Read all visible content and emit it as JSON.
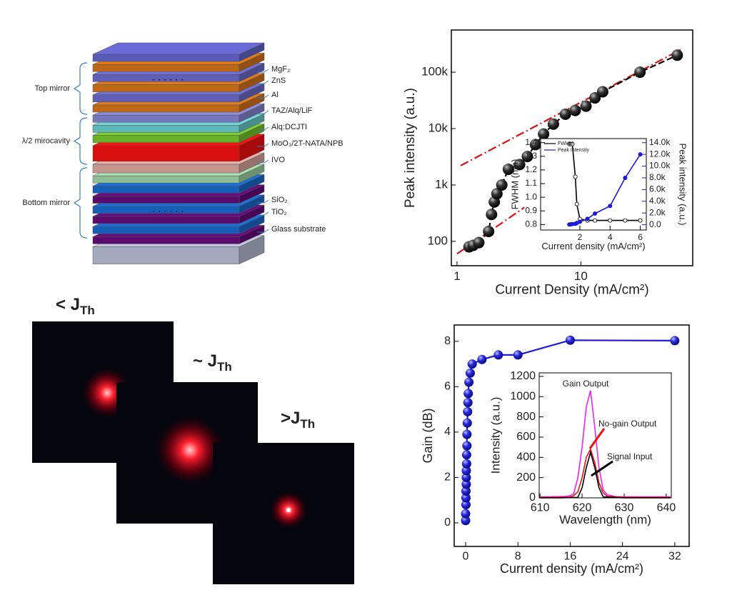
{
  "diagram": {
    "layers": [
      "MgF₂",
      "ZnS",
      "Al",
      "TAZ/Alq/LiF",
      "Alq:DCJTI",
      "MoO₃/2T-NATA/NPB",
      "IVO",
      "SiO₂",
      "TiO₂",
      "Glass substrate"
    ],
    "groups": [
      "Top mirror",
      "λ/2 mirocavity",
      "Bottom mirror"
    ]
  },
  "photos": [
    {
      "prefix": "< J",
      "sub": "Th"
    },
    {
      "prefix": "~ J",
      "sub": "Th"
    },
    {
      "prefix": ">J",
      "sub": "Th"
    }
  ],
  "chart_data": [
    {
      "type": "scatter",
      "x_label": "Current Density (mA/cm²)",
      "y_label": "Peak intensity (a.u.)",
      "xscale": "log",
      "yscale": "log",
      "xlim": [
        0.9,
        80
      ],
      "ylim": [
        37,
        560000
      ],
      "xticks": [
        1,
        10
      ],
      "yticks": [
        100,
        {
          "value": 1000,
          "label": "1k"
        },
        {
          "value": 10000,
          "label": "10k"
        },
        {
          "value": 100000,
          "label": "100k"
        }
      ],
      "series": [
        {
          "color": "#000000",
          "x": [
            1.25,
            1.35,
            1.5,
            1.8,
            1.9,
            2.0,
            2.1,
            2.3,
            2.6,
            3.2,
            3.7,
            4.3,
            5,
            6,
            7.5,
            9,
            11,
            13,
            15,
            30,
            60
          ],
          "values": [
            80,
            85,
            95,
            150,
            300,
            500,
            700,
            1000,
            1900,
            2300,
            3200,
            5200,
            8000,
            12000,
            18000,
            21000,
            25000,
            35000,
            45000,
            100000,
            200000
          ]
        }
      ],
      "fits": [
        {
          "color": "#dd1111",
          "x": [
            1,
            3.5
          ],
          "values": [
            60,
            400
          ]
        },
        {
          "color": "#dd1111",
          "x": [
            1.07,
            66
          ],
          "values": [
            2200,
            260000
          ]
        }
      ]
    },
    {
      "type": "line",
      "markers": true,
      "x_label": "Current density (mA/cm²)",
      "y_label": "FWHM (nm)",
      "y2_label": "Peak intensity (a.u.)",
      "xlim": [
        -0.6,
        6.4
      ],
      "ylim": [
        0.76,
        1.43
      ],
      "y2lim": [
        -900,
        14700
      ],
      "xticks": [
        2,
        4,
        6
      ],
      "yticks": [
        0.8,
        0.9,
        {
          "value": 1,
          "label": "1.0"
        },
        1.1,
        1.2,
        1.3,
        1.4
      ],
      "y2ticks": [
        {
          "value": 0,
          "label": "0.0"
        },
        {
          "value": 2000,
          "label": "2.0k"
        },
        {
          "value": 4000,
          "label": "4.0k"
        },
        {
          "value": 6000,
          "label": "6.0k"
        },
        {
          "value": 8000,
          "label": "8.0k"
        },
        {
          "value": 10000,
          "label": "10.0k"
        },
        {
          "value": 12000,
          "label": "12.0k"
        },
        {
          "value": 14000,
          "label": "14.0k"
        }
      ],
      "series": [
        {
          "name": "FWHM",
          "color": "#000000",
          "x": [
            1.3,
            1.4,
            1.5,
            1.7,
            1.8,
            2,
            2.5,
            3,
            4,
            5,
            6
          ],
          "values": [
            1.39,
            1.39,
            1.39,
            1.15,
            0.95,
            0.84,
            0.83,
            0.83,
            0.83,
            0.83,
            0.83
          ]
        },
        {
          "name": "Peak Intensity",
          "color": "#1a1adb",
          "axis": "y2",
          "x": [
            1.3,
            1.4,
            1.5,
            1.7,
            1.8,
            2,
            2.5,
            3,
            4,
            5,
            6
          ],
          "values": [
            50,
            80,
            100,
            150,
            300,
            500,
            1000,
            1900,
            3200,
            8000,
            12000
          ]
        }
      ]
    },
    {
      "type": "scatter",
      "x_label": "Current density (mA/cm²)",
      "y_label": "Gain (dB)",
      "xlim": [
        -1.75,
        34.2
      ],
      "ylim": [
        -1.04,
        8.72
      ],
      "xticks": [
        0,
        8,
        16,
        24,
        32
      ],
      "yticks": [
        0,
        2,
        4,
        6,
        8
      ],
      "series": [
        {
          "color": "#1a1adb",
          "x": [
            0,
            0,
            0.05,
            0.05,
            0.05,
            0.1,
            0.1,
            0.1,
            0.15,
            0.15,
            0.2,
            0.2,
            0.25,
            0.3,
            0.35,
            0.4,
            0.5,
            0.7,
            1,
            2.5,
            5,
            8,
            16,
            32
          ],
          "values": [
            0.1,
            0.4,
            0.8,
            1.1,
            1.4,
            1.7,
            2.0,
            2.3,
            2.6,
            3.0,
            3.4,
            3.9,
            4.4,
            4.9,
            5.3,
            5.7,
            6.2,
            6.6,
            7.0,
            7.2,
            7.4,
            7.4,
            8.05,
            8.03
          ]
        }
      ]
    },
    {
      "type": "line",
      "x_label": "Wavelength (nm)",
      "y_label": "Intensity (a.u.)",
      "xlim": [
        609.8,
        641.2
      ],
      "ylim": [
        0,
        1235
      ],
      "xticks": [
        610,
        620,
        630,
        640
      ],
      "yticks": [
        0,
        200,
        400,
        600,
        800,
        1000,
        1200
      ],
      "series": [
        {
          "name": "Gain Output",
          "color": "#ee22ee",
          "x": [
            610,
            612,
            614,
            616,
            617,
            618,
            619,
            620,
            621,
            622,
            623,
            624,
            625,
            626,
            628,
            630,
            632,
            634,
            636,
            638,
            640,
            641
          ],
          "values": [
            10,
            10,
            12,
            15,
            20,
            40,
            200,
            500,
            900,
            1060,
            700,
            300,
            80,
            30,
            12,
            10,
            10,
            10,
            10,
            10,
            10,
            10
          ]
        },
        {
          "name": "No-gain Output",
          "color": "#ee1111",
          "x": [
            610,
            614,
            617,
            618,
            619,
            620,
            621,
            622,
            623,
            624,
            625,
            626,
            630,
            635,
            641
          ],
          "values": [
            5,
            5,
            8,
            20,
            60,
            200,
            400,
            480,
            350,
            150,
            50,
            15,
            5,
            5,
            5
          ]
        },
        {
          "name": "Signal Input",
          "color": "#000000",
          "x": [
            610,
            615,
            619,
            620,
            621,
            622,
            623,
            624,
            625,
            630,
            641
          ],
          "values": [
            0,
            0,
            5,
            100,
            300,
            450,
            300,
            100,
            10,
            0,
            0
          ]
        }
      ]
    }
  ]
}
